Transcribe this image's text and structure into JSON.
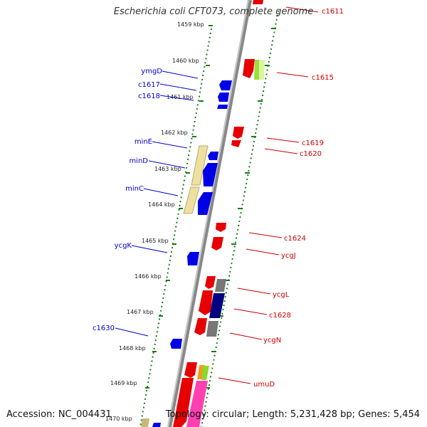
{
  "title": "Escherichia coli CFT073, complete genome",
  "footer": {
    "accession": "Accession: NC_004431",
    "topology": "Topology: circular; Length: 5,231,428 bp; Genes: 5,454"
  },
  "colors": {
    "forward_gene": "#e60000",
    "reverse_gene": "#0000e6",
    "forward_label": "#cc0000",
    "reverse_label": "#0000cc",
    "tick": "#1a7a1a",
    "backbone": "#909090",
    "pale_feature": "#eee0a0"
  },
  "kbp_labels": [
    "1459 kbp",
    "1460 kbp",
    "1461 kbp",
    "1462 kbp",
    "1463 kbp",
    "1464 kbp",
    "1465 kbp",
    "1466 kbp",
    "1467 kbp",
    "1468 kbp",
    "1469 kbp",
    "1470 kbp"
  ],
  "reverse_genes": [
    "ymgD",
    "c1617",
    "c1618",
    "minE",
    "minD",
    "minC",
    "ycgK",
    "c1630"
  ],
  "forward_genes": [
    "c1611",
    "c1615",
    "c1619",
    "c1620",
    "c1624",
    "ycgJ",
    "ycgL",
    "c1628",
    "ycgN",
    "umuD"
  ]
}
